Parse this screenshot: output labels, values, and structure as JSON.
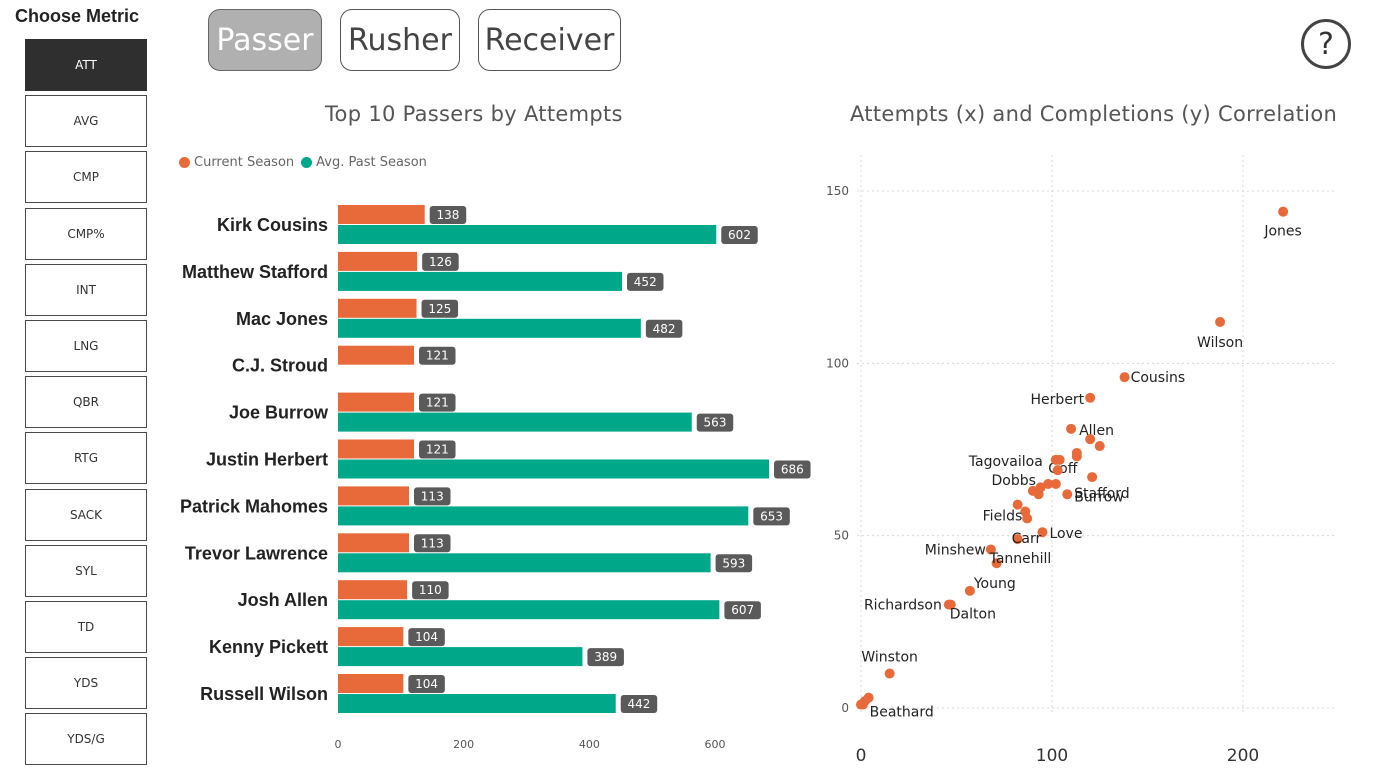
{
  "metric_panel": {
    "title": "Choose Metric",
    "items": [
      "ATT",
      "AVG",
      "CMP",
      "CMP%",
      "INT",
      "LNG",
      "QBR",
      "RTG",
      "SACK",
      "SYL",
      "TD",
      "YDS",
      "YDS/G"
    ],
    "active": "ATT"
  },
  "tabs": [
    {
      "label": "Passer",
      "active": true
    },
    {
      "label": "Rusher",
      "active": false
    },
    {
      "label": "Receiver",
      "active": false
    }
  ],
  "help": {
    "label": "?",
    "icon": "help-icon"
  },
  "colors": {
    "current": "#E8693A",
    "past": "#00A88A",
    "label_bg": "#5a5a5a",
    "scatter_point": "#E8693A"
  },
  "legend": {
    "current": "Current Season",
    "past": "Avg. Past Season"
  },
  "chart_data": [
    {
      "type": "bar",
      "orientation": "horizontal",
      "title": "Top 10 Passers by Attempts",
      "categories": [
        "Kirk Cousins",
        "Matthew Stafford",
        "Mac Jones",
        "C.J. Stroud",
        "Joe Burrow",
        "Justin Herbert",
        "Patrick Mahomes",
        "Trevor Lawrence",
        "Josh Allen",
        "Kenny Pickett",
        "Russell Wilson"
      ],
      "series": [
        {
          "name": "Current Season",
          "values": [
            138,
            126,
            125,
            121,
            121,
            121,
            113,
            113,
            110,
            104,
            104
          ]
        },
        {
          "name": "Avg. Past Season",
          "values": [
            602,
            452,
            482,
            null,
            563,
            686,
            653,
            593,
            607,
            389,
            442
          ]
        }
      ],
      "xlim": [
        0,
        700
      ],
      "xticks": [
        0,
        200,
        400,
        600
      ],
      "legend_position": "top-left"
    },
    {
      "type": "scatter",
      "title": "Attempts (x) and Completions (y) Correlation",
      "xlim": [
        0,
        250
      ],
      "ylim": [
        0,
        155
      ],
      "xticks": [
        0,
        100,
        200
      ],
      "yticks": [
        0,
        50,
        100,
        150
      ],
      "grid": true,
      "points": [
        {
          "x": 221,
          "y": 144,
          "label": "Jones"
        },
        {
          "x": 188,
          "y": 112,
          "label": "Wilson"
        },
        {
          "x": 138,
          "y": 96,
          "label": "Cousins"
        },
        {
          "x": 120,
          "y": 90,
          "label": "Herbert"
        },
        {
          "x": 110,
          "y": 81,
          "label": "Allen"
        },
        {
          "x": 120,
          "y": 78,
          "label": ""
        },
        {
          "x": 125,
          "y": 76,
          "label": ""
        },
        {
          "x": 113,
          "y": 74,
          "label": "Goff"
        },
        {
          "x": 113,
          "y": 73,
          "label": ""
        },
        {
          "x": 102,
          "y": 72,
          "label": "Tagovailoa"
        },
        {
          "x": 104,
          "y": 72,
          "label": ""
        },
        {
          "x": 103,
          "y": 69,
          "label": ""
        },
        {
          "x": 121,
          "y": 67,
          "label": "Stafford"
        },
        {
          "x": 98,
          "y": 65,
          "label": ""
        },
        {
          "x": 102,
          "y": 65,
          "label": ""
        },
        {
          "x": 94,
          "y": 64,
          "label": ""
        },
        {
          "x": 90,
          "y": 63,
          "label": "Dobbs"
        },
        {
          "x": 93,
          "y": 62,
          "label": ""
        },
        {
          "x": 108,
          "y": 62,
          "label": "Burrow"
        },
        {
          "x": 82,
          "y": 59,
          "label": ""
        },
        {
          "x": 86,
          "y": 57,
          "label": "Fields"
        },
        {
          "x": 87,
          "y": 55,
          "label": ""
        },
        {
          "x": 95,
          "y": 51,
          "label": "Love"
        },
        {
          "x": 82,
          "y": 49,
          "label": "Carr"
        },
        {
          "x": 68,
          "y": 46,
          "label": "Minshew"
        },
        {
          "x": 71,
          "y": 42,
          "label": "Tannehill"
        },
        {
          "x": 57,
          "y": 34,
          "label": "Young"
        },
        {
          "x": 46,
          "y": 30,
          "label": "Richardson"
        },
        {
          "x": 47,
          "y": 30,
          "label": "Dalton"
        },
        {
          "x": 15,
          "y": 10,
          "label": "Winston"
        },
        {
          "x": 4,
          "y": 3,
          "label": "Beathard"
        },
        {
          "x": 2,
          "y": 2,
          "label": ""
        },
        {
          "x": 1,
          "y": 1,
          "label": ""
        },
        {
          "x": 0,
          "y": 1,
          "label": ""
        }
      ]
    }
  ]
}
